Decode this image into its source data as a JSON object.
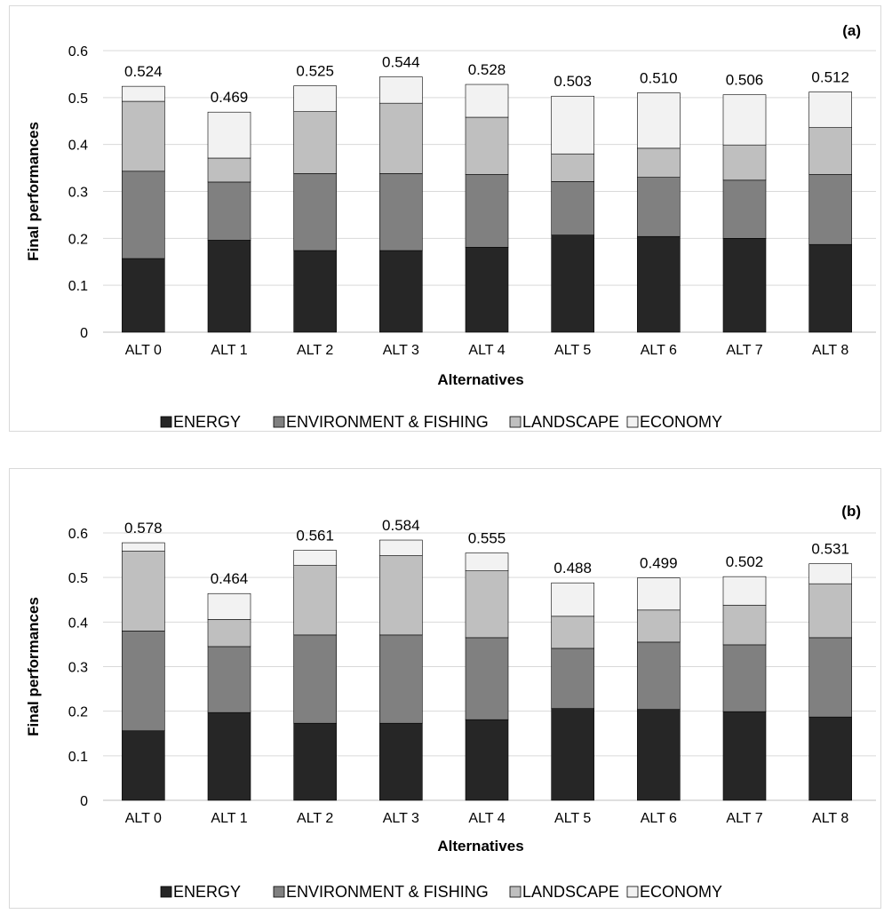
{
  "colors": {
    "energy": "#262626",
    "environment_fishing": "#808080",
    "landscape": "#bfbfbf",
    "economy": "#f2f2f2",
    "gridline": "#d9d9d9"
  },
  "chart_data": [
    {
      "type": "bar",
      "stacked": true,
      "panel_label": "(a)",
      "xlabel": "Alternatives",
      "ylabel": "Final performances",
      "ylim": [
        0,
        0.6
      ],
      "yticks": [
        "0",
        "0.1",
        "0.2",
        "0.3",
        "0.4",
        "0.5",
        "0.6"
      ],
      "grid": true,
      "legend_position": "bottom",
      "categories": [
        "ALT 0",
        "ALT 1",
        "ALT 2",
        "ALT 3",
        "ALT 4",
        "ALT 5",
        "ALT 6",
        "ALT 7",
        "ALT 8"
      ],
      "totals": [
        "0.524",
        "0.469",
        "0.525",
        "0.544",
        "0.528",
        "0.503",
        "0.510",
        "0.506",
        "0.512"
      ],
      "series": [
        {
          "name": "ENERGY",
          "values": [
            0.157,
            0.196,
            0.174,
            0.174,
            0.181,
            0.207,
            0.204,
            0.2,
            0.187
          ]
        },
        {
          "name": "ENVIRONMENT & FISHING",
          "values": [
            0.186,
            0.124,
            0.164,
            0.164,
            0.155,
            0.114,
            0.126,
            0.124,
            0.149
          ]
        },
        {
          "name": "LANDSCAPE",
          "values": [
            0.149,
            0.051,
            0.132,
            0.15,
            0.122,
            0.059,
            0.062,
            0.075,
            0.1
          ]
        },
        {
          "name": "ECONOMY",
          "values": [
            0.032,
            0.098,
            0.055,
            0.056,
            0.07,
            0.123,
            0.118,
            0.107,
            0.076
          ]
        }
      ]
    },
    {
      "type": "bar",
      "stacked": true,
      "panel_label": "(b)",
      "xlabel": "Alternatives",
      "ylabel": "Final performances",
      "ylim": [
        0,
        0.6
      ],
      "yticks": [
        "0",
        "0.1",
        "0.2",
        "0.3",
        "0.4",
        "0.5",
        "0.6"
      ],
      "grid": true,
      "legend_position": "bottom",
      "categories": [
        "ALT 0",
        "ALT 1",
        "ALT 2",
        "ALT 3",
        "ALT 4",
        "ALT 5",
        "ALT 6",
        "ALT 7",
        "ALT 8"
      ],
      "totals": [
        "0.578",
        "0.464",
        "0.561",
        "0.584",
        "0.555",
        "0.488",
        "0.499",
        "0.502",
        "0.531"
      ],
      "series": [
        {
          "name": "ENERGY",
          "values": [
            0.156,
            0.197,
            0.173,
            0.173,
            0.181,
            0.206,
            0.204,
            0.199,
            0.187
          ]
        },
        {
          "name": "ENVIRONMENT & FISHING",
          "values": [
            0.224,
            0.148,
            0.198,
            0.198,
            0.184,
            0.135,
            0.151,
            0.15,
            0.178
          ]
        },
        {
          "name": "LANDSCAPE",
          "values": [
            0.179,
            0.061,
            0.156,
            0.178,
            0.15,
            0.072,
            0.072,
            0.089,
            0.121
          ]
        },
        {
          "name": "ECONOMY",
          "values": [
            0.019,
            0.058,
            0.034,
            0.035,
            0.04,
            0.075,
            0.072,
            0.064,
            0.045
          ]
        }
      ]
    }
  ]
}
